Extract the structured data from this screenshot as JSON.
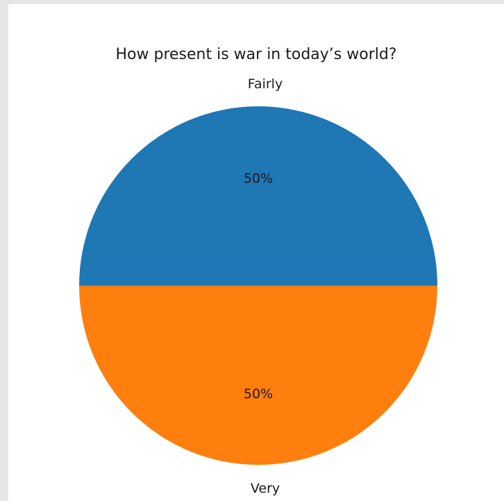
{
  "chart_data": {
    "type": "pie",
    "title": "How present is war in today’s world?",
    "labels": [
      "Fairly",
      "Very"
    ],
    "values": [
      50,
      50
    ],
    "percent_labels": [
      "50%",
      "50%"
    ],
    "colors": [
      "#1f77b4",
      "#ff7f0e"
    ],
    "start_angle_deg": 0,
    "direction": "counterclockwise"
  }
}
